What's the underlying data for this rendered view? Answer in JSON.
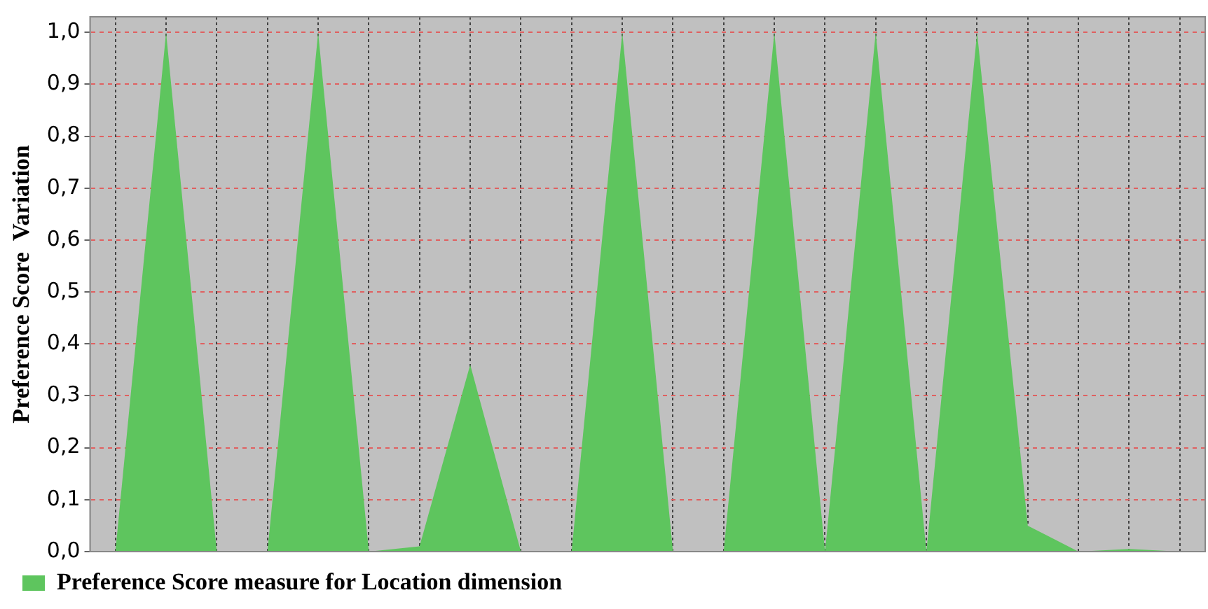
{
  "chart_data": {
    "type": "area",
    "ylabel": "Preference Score  Variation",
    "categories": [
      null,
      null,
      null,
      null,
      null,
      null,
      null,
      null,
      null,
      null,
      null,
      null,
      null,
      null,
      null,
      null,
      null,
      null,
      null,
      null,
      null,
      null
    ],
    "series": [
      {
        "name": "Preference Score measure for Location dimension",
        "color": "#5ec55e",
        "values": [
          0,
          1.0,
          0,
          0,
          1.0,
          0,
          0.01,
          0.36,
          0,
          0,
          1.0,
          0,
          0,
          1.0,
          0,
          1.0,
          0,
          1.0,
          0.05,
          0,
          0.005,
          0
        ]
      }
    ],
    "ylim": [
      0,
      1.03
    ],
    "yticks": [
      {
        "value": 0,
        "label": "0,0"
      },
      {
        "value": 0.1,
        "label": "0,1"
      },
      {
        "value": 0.2,
        "label": "0,2"
      },
      {
        "value": 0.3,
        "label": "0,3"
      },
      {
        "value": 0.4,
        "label": "0,4"
      },
      {
        "value": 0.5,
        "label": "0,5"
      },
      {
        "value": 0.6,
        "label": "0,6"
      },
      {
        "value": 0.7,
        "label": "0,7"
      },
      {
        "value": 0.8,
        "label": "0,8"
      },
      {
        "value": 0.9,
        "label": "0,9"
      },
      {
        "value": 1.0,
        "label": "1,0"
      }
    ],
    "grid": true,
    "legend": "bottom left"
  }
}
